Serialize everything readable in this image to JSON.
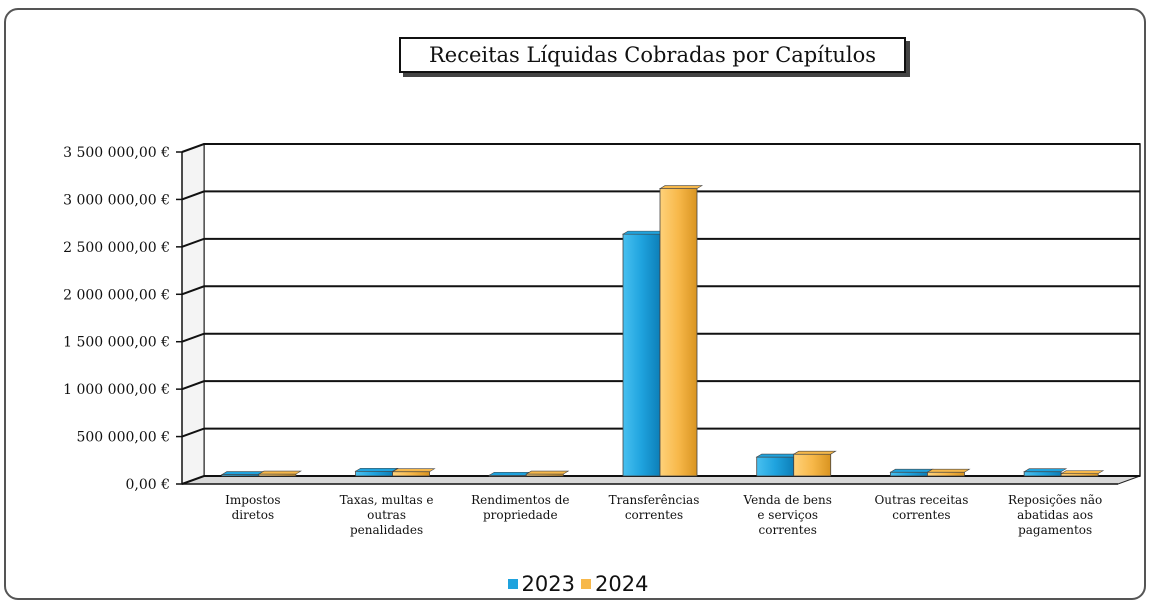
{
  "chart_data": {
    "type": "bar",
    "title": "Receitas Líquidas Cobradas por Capítulos",
    "categories": [
      [
        "Impostos",
        "diretos"
      ],
      [
        "Taxas, multas e",
        "outras",
        "penalidades"
      ],
      [
        "Rendimentos de",
        "propriedade"
      ],
      [
        "Transferências",
        "correntes"
      ],
      [
        "Venda de bens",
        "e serviços",
        "correntes"
      ],
      [
        "Outras receitas",
        "correntes"
      ],
      [
        "Reposições não",
        "abatidas aos",
        "pagamentos"
      ]
    ],
    "series": [
      {
        "name": "2023",
        "color": "#1fa3de",
        "values": [
          15000,
          50000,
          8000,
          2550000,
          200000,
          40000,
          45000
        ]
      },
      {
        "name": "2024",
        "color": "#f7b84a",
        "values": [
          20000,
          45000,
          20000,
          3030000,
          230000,
          40000,
          25000
        ]
      }
    ],
    "ylim": [
      0,
      3500000
    ],
    "yticks": [
      "0,00 €",
      "500 000,00 €",
      "1 000 000,00 €",
      "1 500 000,00 €",
      "2 000 000,00 €",
      "2 500 000,00 €",
      "3 000 000,00 €",
      "3 500 000,00 €"
    ],
    "grid": true,
    "legend_position": "bottom"
  }
}
